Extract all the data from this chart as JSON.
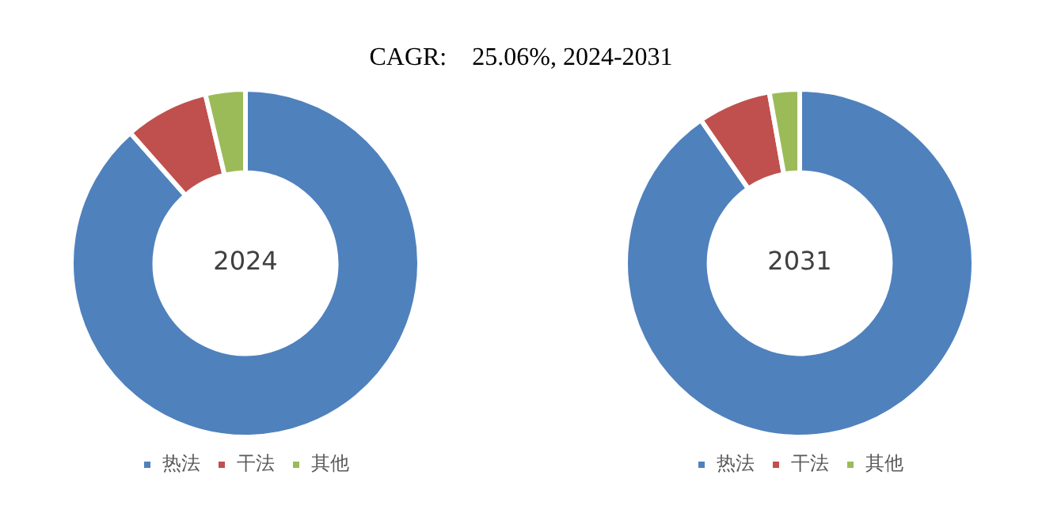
{
  "chart_data": [
    {
      "type": "donut",
      "title": "CAGR:    25.06%, 2024-2031",
      "annotations": [
        "2024"
      ],
      "categories": [
        "热法",
        "干法",
        "其他"
      ],
      "values": [
        88.5,
        7.8,
        3.7
      ],
      "colors": [
        "#4f81bd",
        "#c0504d",
        "#9bbb59"
      ],
      "legend": "bottom"
    },
    {
      "type": "donut",
      "annotations": [
        "2031"
      ],
      "categories": [
        "热法",
        "干法",
        "其他"
      ],
      "values": [
        90.4,
        6.8,
        2.8
      ],
      "colors": [
        "#4f81bd",
        "#c0504d",
        "#9bbb59"
      ],
      "legend": "bottom"
    }
  ]
}
